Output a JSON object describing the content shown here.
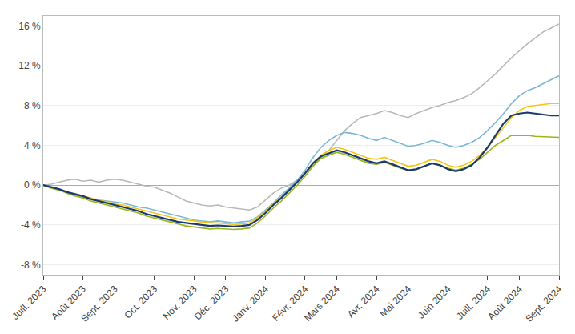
{
  "chart_data": {
    "type": "line",
    "categories": [
      "Juill. 2023",
      null,
      null,
      null,
      null,
      "Août 2023",
      null,
      null,
      null,
      "Sept. 2023",
      null,
      null,
      null,
      null,
      "Oct. 2023",
      null,
      null,
      null,
      null,
      "Nov. 2023",
      null,
      null,
      null,
      "Déc. 2023",
      null,
      null,
      null,
      null,
      "Janv. 2024",
      null,
      null,
      null,
      null,
      "Févr. 2024",
      null,
      null,
      null,
      "Mars 2024",
      null,
      null,
      null,
      null,
      "Avr. 2024",
      null,
      null,
      null,
      "Mai 2024",
      null,
      null,
      null,
      null,
      "Juin 2024",
      null,
      null,
      null,
      null,
      "Juill. 2024",
      null,
      null,
      null,
      "Août 2024",
      null,
      null,
      null,
      null,
      "Sept. 2024"
    ],
    "series": [
      {
        "color": "#b8b8b8",
        "values": [
          0.0,
          0.1,
          0.3,
          0.5,
          0.6,
          0.4,
          0.5,
          0.3,
          0.5,
          0.6,
          0.5,
          0.3,
          0.1,
          -0.1,
          -0.2,
          -0.5,
          -0.8,
          -1.2,
          -1.6,
          -1.8,
          -2.0,
          -2.1,
          -2.0,
          -2.2,
          -2.3,
          -2.4,
          -2.5,
          -2.2,
          -1.5,
          -0.8,
          -0.3,
          0.0,
          0.5,
          1.2,
          2.0,
          2.8,
          3.5,
          4.5,
          5.5,
          6.2,
          6.8,
          7.0,
          7.2,
          7.5,
          7.3,
          7.0,
          6.8,
          7.2,
          7.5,
          7.8,
          8.0,
          8.3,
          8.5,
          8.8,
          9.2,
          9.8,
          10.5,
          11.2,
          12.0,
          12.8,
          13.5,
          14.2,
          14.8,
          15.4,
          15.8,
          16.2
        ]
      },
      {
        "color": "#7ab8d4",
        "values": [
          0.0,
          -0.2,
          -0.4,
          -0.8,
          -1.0,
          -1.2,
          -1.4,
          -1.5,
          -1.6,
          -1.7,
          -1.8,
          -2.0,
          -2.2,
          -2.3,
          -2.5,
          -2.7,
          -2.9,
          -3.1,
          -3.3,
          -3.5,
          -3.6,
          -3.7,
          -3.6,
          -3.7,
          -3.8,
          -3.7,
          -3.6,
          -3.2,
          -2.5,
          -1.8,
          -1.0,
          -0.3,
          0.5,
          1.5,
          2.8,
          3.8,
          4.5,
          5.0,
          5.3,
          5.2,
          5.0,
          4.7,
          4.5,
          4.8,
          4.5,
          4.2,
          3.9,
          4.0,
          4.2,
          4.5,
          4.3,
          4.0,
          3.8,
          4.0,
          4.3,
          4.8,
          5.5,
          6.3,
          7.2,
          8.2,
          9.0,
          9.5,
          9.8,
          10.2,
          10.6,
          11.0
        ]
      },
      {
        "color": "#f5c518",
        "values": [
          0.0,
          -0.2,
          -0.4,
          -0.7,
          -0.9,
          -1.1,
          -1.3,
          -1.5,
          -1.7,
          -1.9,
          -2.0,
          -2.2,
          -2.4,
          -2.6,
          -2.8,
          -3.0,
          -3.2,
          -3.4,
          -3.5,
          -3.6,
          -3.7,
          -3.8,
          -3.8,
          -3.9,
          -3.95,
          -3.9,
          -3.8,
          -3.3,
          -2.6,
          -1.9,
          -1.2,
          -0.5,
          0.3,
          1.2,
          2.2,
          3.0,
          3.5,
          3.8,
          3.6,
          3.3,
          3.0,
          2.7,
          2.6,
          2.8,
          2.5,
          2.2,
          1.9,
          2.0,
          2.3,
          2.6,
          2.4,
          2.0,
          1.8,
          2.0,
          2.4,
          3.0,
          3.8,
          4.8,
          5.8,
          6.8,
          7.5,
          7.9,
          8.0,
          8.1,
          8.2,
          8.2
        ]
      },
      {
        "color": "#9ab71a",
        "values": [
          0.0,
          -0.3,
          -0.5,
          -0.8,
          -1.1,
          -1.3,
          -1.6,
          -1.8,
          -2.0,
          -2.2,
          -2.4,
          -2.6,
          -2.8,
          -3.1,
          -3.3,
          -3.5,
          -3.7,
          -3.9,
          -4.1,
          -4.2,
          -4.3,
          -4.4,
          -4.35,
          -4.4,
          -4.45,
          -4.4,
          -4.3,
          -3.8,
          -3.1,
          -2.3,
          -1.6,
          -0.8,
          0.0,
          0.9,
          1.9,
          2.7,
          3.0,
          3.3,
          3.1,
          2.8,
          2.5,
          2.2,
          2.1,
          2.3,
          2.0,
          1.7,
          1.5,
          1.6,
          1.9,
          2.2,
          2.0,
          1.7,
          1.5,
          1.7,
          2.1,
          2.6,
          3.3,
          4.0,
          4.5,
          5.0,
          5.0,
          5.0,
          4.9,
          4.85,
          4.8,
          4.8
        ]
      },
      {
        "color": "#1b3a6b",
        "values": [
          0.0,
          -0.2,
          -0.4,
          -0.7,
          -0.9,
          -1.1,
          -1.4,
          -1.6,
          -1.8,
          -2.0,
          -2.2,
          -2.4,
          -2.6,
          -2.9,
          -3.1,
          -3.3,
          -3.5,
          -3.7,
          -3.8,
          -3.9,
          -4.0,
          -4.1,
          -4.05,
          -4.1,
          -4.15,
          -4.1,
          -4.0,
          -3.5,
          -2.8,
          -2.0,
          -1.3,
          -0.5,
          0.3,
          1.2,
          2.2,
          2.9,
          3.2,
          3.5,
          3.3,
          3.0,
          2.7,
          2.4,
          2.2,
          2.4,
          2.1,
          1.8,
          1.5,
          1.6,
          1.9,
          2.2,
          2.0,
          1.6,
          1.4,
          1.6,
          2.0,
          2.8,
          3.8,
          5.0,
          6.2,
          7.0,
          7.2,
          7.3,
          7.2,
          7.1,
          7.0,
          7.0
        ]
      }
    ],
    "ylim": [
      -9,
      17
    ],
    "yticks": [
      {
        "value": -8,
        "label": "-8 %"
      },
      {
        "value": -4,
        "label": "-4 %"
      },
      {
        "value": 0,
        "label": "0 %"
      },
      {
        "value": 4,
        "label": "4 %"
      },
      {
        "value": 8,
        "label": "8 %"
      },
      {
        "value": 12,
        "label": "12 %"
      },
      {
        "value": 16,
        "label": "16 %"
      }
    ],
    "grid": true
  }
}
